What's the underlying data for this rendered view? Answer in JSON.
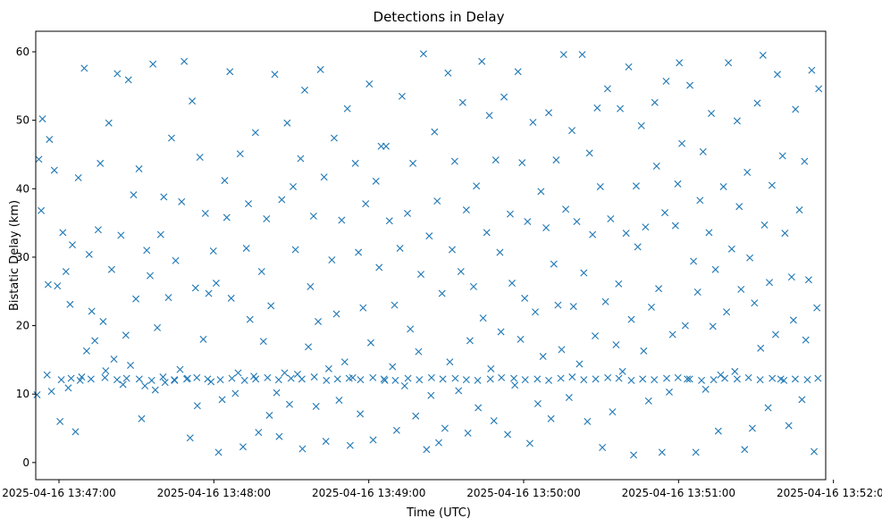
{
  "chart_data": {
    "type": "scatter",
    "title": "Detections in Delay",
    "xlabel": "Time (UTC)",
    "ylabel": "Bistatic Delay (km)",
    "marker": "x",
    "color": "#1f77b4",
    "grid": false,
    "legend": "none",
    "x_range": [
      "2025-04-16 13:46:51",
      "2025-04-16 13:51:57"
    ],
    "ylim": [
      -2.5,
      63
    ],
    "x_ticks": [
      "2025-04-16 13:47:00",
      "2025-04-16 13:48:00",
      "2025-04-16 13:49:00",
      "2025-04-16 13:50:00",
      "2025-04-16 13:51:00",
      "2025-04-16 13:52:00"
    ],
    "y_ticks": [
      0,
      10,
      20,
      30,
      40,
      50,
      60
    ],
    "x_start": "2025-04-16 13:46:51",
    "points_x_seconds_from_start": [
      0.5,
      1.2,
      2.6,
      4.4,
      5.3,
      6.1,
      7.2,
      8.4,
      9.4,
      10.5,
      11.7,
      12.6,
      13.3,
      14.2,
      15.4,
      16.5,
      17.8,
      18.8,
      19.7,
      20.7,
      21.7,
      22.9,
      24.2,
      25.0,
      26.1,
      27.1,
      28.3,
      29.4,
      30.3,
      31.6,
      33.0,
      33.8,
      34.9,
      35.9,
      36.7,
      37.9,
      38.8,
      40.0,
      41.0,
      42.3,
      43.0,
      44.3,
      45.4,
      46.3,
      47.1,
      48.4,
      49.6,
      50.1,
      51.4,
      52.6,
      53.8,
      54.2,
      55.9,
      56.5,
      57.5,
      58.5,
      59.8,
      60.6,
      61.9,
      62.6,
      63.6,
      64.9,
      65.7,
      67.0,
      67.9,
      68.8,
      69.9,
      70.8,
      72.2,
      73.2,
      74.0,
      75.2,
      75.7,
      77.3,
      78.4,
      79.2,
      80.3,
      81.6,
      82.4,
      83.0,
      84.5,
      85.1,
      86.3,
      87.5,
      88.2,
      89.4,
      90.5,
      91.1,
      92.6,
      93.3,
      94.3,
      95.3,
      96.4,
      97.4,
      98.3,
      99.7,
      100.6,
      101.4,
      102.6,
      103.3,
      104.2,
      105.6,
      106.4,
      107.6,
      108.6,
      109.4,
      110.3,
      111.7,
      112.4,
      113.5,
      114.7,
      115.6,
      116.5,
      117.5,
      118.5,
      119.7,
      120.7,
      121.8,
      122.8,
      123.8,
      125.0,
      125.7,
      126.8,
      127.8,
      129.2,
      129.8,
      130.7,
      131.8,
      133.0,
      133.8,
      135.2,
      135.7,
      137.0,
      138.2,
      139.0,
      139.8,
      141.1,
      141.9,
      142.9,
      144.0,
      145.1,
      146.1,
      147.2,
      148.3,
      149.2,
      150.2,
      151.4,
      152.4,
      153.1,
      154.5,
      155.5,
      156.1,
      157.4,
      158.5,
      159.7,
      160.4,
      161.3,
      162.3,
      163.8,
      164.7,
      165.4,
      166.8,
      167.4,
      168.2,
      169.6,
      170.7,
      171.4,
      172.8,
      173.3,
      174.7,
      175.7,
      176.3,
      177.5,
      178.2,
      179.8,
      180.2,
      181.4,
      182.8,
      183.8,
      184.5,
      185.6,
      186.8,
      187.8,
      188.4,
      189.4,
      190.5,
      191.4,
      192.6,
      193.5,
      194.5,
      195.7,
      196.5,
      197.7,
      198.7,
      199.6,
      200.7,
      201.6,
      202.3,
      203.7,
      204.5,
      205.3,
      206.6,
      207.7,
      208.3,
      209.6,
      210.6,
      211.7,
      212.3,
      213.7,
      214.5,
      215.7,
      216.7,
      217.5,
      218.7,
      219.5,
      220.7,
      221.5,
      222.7,
      223.4,
      224.8,
      225.8,
      226.4,
      227.3,
      228.7,
      229.7,
      230.7,
      231.6,
      232.6,
      233.2,
      234.6,
      235.5,
      236.2,
      237.4,
      238.5,
      239.8,
      240.5,
      241.3,
      242.6,
      243.7,
      244.2,
      245.4,
      246.7,
      247.8,
      248.7,
      249.3,
      250.3,
      251.6,
      252.4,
      253.4,
      254.8,
      255.7,
      256.4,
      257.3,
      258.5,
      259.5,
      260.8,
      261.7,
      262.3,
      263.3,
      264.4,
      265.3,
      266.4,
      267.6,
      268.3,
      269.6,
      270.8,
      271.7,
      272.5,
      273.2,
      274.6,
      275.6,
      276.6,
      277.6,
      278.4,
      279.5,
      280.8,
      281.7,
      282.3,
      283.7,
      284.2,
      285.2,
      286.6,
      287.3,
      288.6,
      289.3,
      290.2,
      291.7,
      292.8,
      293.5,
      294.3,
      295.8,
      296.8,
      297.8,
      298.3,
      299.4,
      300.6,
      301.5,
      302.6,
      303.3,
      2.1,
      4.8,
      9.9,
      13.7,
      17.2,
      21.4,
      26.8,
      31.5,
      35.2,
      40.1,
      44.9,
      49.3,
      53.7,
      58.8,
      62.4,
      66.6,
      71.5,
      76.0,
      80.9,
      85.2,
      89.8,
      94.1,
      98.9,
      103.1,
      107.9,
      112.6,
      116.9,
      121.4,
      125.8,
      130.6,
      134.9,
      139.3,
      144.2,
      148.6,
      153.3,
      157.7,
      162.5,
      166.8,
      171.2,
      176.1,
      180.4,
      185.2,
      189.6,
      194.3,
      198.7,
      203.4,
      207.8,
      212.3,
      216.9,
      221.6,
      225.9,
      230.7,
      235.1,
      239.6,
      244.4,
      248.8,
      253.3,
      257.9,
      262.6,
      266.9,
      271.7,
      276.1,
      280.6,
      285.3,
      289.8,
      294.2,
      298.9,
      303.0
    ],
    "points_y": [
      9.9,
      44.3,
      50.2,
      12.8,
      47.2,
      10.4,
      42.7,
      25.8,
      6.0,
      33.6,
      27.9,
      10.9,
      23.1,
      31.8,
      4.5,
      41.6,
      12.5,
      57.6,
      16.3,
      30.4,
      22.1,
      17.8,
      34.0,
      43.7,
      20.6,
      13.4,
      49.6,
      28.2,
      15.1,
      56.8,
      33.2,
      11.4,
      18.6,
      55.9,
      14.2,
      39.1,
      23.9,
      42.9,
      6.4,
      11.2,
      31.0,
      27.3,
      58.2,
      10.6,
      19.7,
      33.3,
      38.8,
      11.7,
      24.1,
      47.4,
      12.0,
      29.5,
      13.6,
      38.1,
      58.6,
      12.2,
      3.6,
      52.8,
      25.5,
      8.3,
      44.6,
      18.0,
      36.4,
      24.7,
      11.8,
      30.9,
      26.2,
      1.5,
      9.2,
      41.2,
      35.8,
      57.1,
      24.0,
      10.1,
      13.1,
      45.1,
      2.3,
      31.3,
      37.8,
      20.9,
      12.6,
      48.2,
      4.4,
      27.9,
      17.7,
      35.6,
      6.9,
      22.9,
      56.7,
      10.2,
      3.8,
      38.4,
      13.1,
      49.6,
      8.5,
      40.3,
      31.1,
      12.9,
      44.4,
      2.0,
      54.4,
      16.9,
      25.7,
      36.0,
      8.2,
      20.6,
      57.4,
      41.7,
      3.1,
      13.7,
      29.6,
      47.4,
      21.7,
      9.1,
      35.4,
      14.7,
      51.7,
      2.5,
      12.4,
      43.7,
      30.7,
      7.1,
      22.6,
      37.8,
      55.3,
      17.5,
      3.3,
      41.1,
      28.5,
      46.2,
      12.0,
      46.2,
      35.3,
      14.0,
      23.0,
      4.7,
      31.3,
      53.5,
      11.2,
      36.4,
      19.5,
      43.7,
      6.8,
      16.2,
      27.5,
      59.7,
      1.9,
      33.1,
      9.8,
      48.3,
      38.2,
      2.9,
      24.7,
      5.0,
      56.9,
      14.7,
      31.1,
      44.0,
      10.5,
      27.9,
      52.6,
      36.9,
      4.3,
      17.8,
      25.7,
      40.4,
      8.0,
      58.6,
      21.1,
      33.6,
      50.7,
      13.7,
      6.1,
      44.2,
      30.7,
      19.1,
      53.4,
      4.1,
      36.3,
      26.2,
      11.3,
      57.1,
      18.0,
      43.8,
      24.0,
      35.2,
      2.8,
      49.7,
      22.0,
      8.6,
      39.6,
      15.5,
      34.3,
      51.1,
      6.4,
      29.0,
      44.2,
      23.0,
      16.5,
      59.6,
      37.0,
      9.5,
      48.5,
      22.8,
      35.2,
      14.4,
      59.6,
      27.7,
      6.0,
      45.2,
      33.3,
      18.5,
      51.8,
      40.3,
      2.2,
      23.5,
      54.6,
      35.6,
      7.4,
      17.2,
      26.1,
      51.7,
      13.3,
      33.5,
      57.8,
      20.9,
      1.1,
      40.4,
      31.5,
      49.2,
      16.3,
      34.4,
      9.0,
      22.7,
      52.6,
      43.3,
      25.4,
      1.5,
      36.5,
      55.7,
      10.3,
      18.7,
      34.6,
      40.7,
      58.4,
      46.6,
      20.0,
      12.2,
      55.1,
      29.4,
      1.5,
      24.9,
      38.3,
      45.4,
      10.7,
      33.6,
      51.0,
      19.9,
      28.2,
      4.6,
      12.8,
      40.3,
      22.0,
      58.4,
      31.2,
      13.3,
      49.9,
      37.4,
      25.3,
      1.9,
      42.4,
      29.9,
      5.0,
      23.3,
      52.5,
      16.7,
      59.5,
      34.7,
      8.0,
      26.3,
      40.5,
      18.7,
      56.7,
      12.2,
      44.8,
      33.5,
      5.4,
      27.1,
      20.8,
      51.6,
      36.9,
      9.2,
      44.0,
      17.9,
      26.7,
      57.3,
      1.6,
      22.6,
      54.6,
      36.8,
      26.0,
      12.1,
      12.3,
      12.0,
      12.2,
      12.4,
      12.1,
      12.3,
      12.2,
      12.0,
      12.5,
      12.1,
      12.3,
      12.4,
      12.2,
      12.1,
      12.3,
      12.0,
      12.2,
      12.4,
      12.1,
      12.3,
      12.2,
      12.5,
      12.0,
      12.2,
      12.3,
      12.1,
      12.4,
      12.2,
      12.0,
      12.3,
      12.1,
      12.4,
      12.2,
      12.3,
      12.1,
      12.0,
      12.2,
      12.4,
      12.3,
      12.1,
      12.2,
      12.0,
      12.3,
      12.5,
      12.1,
      12.2,
      12.4,
      12.3,
      12.0,
      12.2,
      12.1,
      12.3,
      12.4,
      12.2,
      12.0,
      12.1,
      12.3,
      12.2,
      12.4,
      12.1,
      12.3,
      12.0,
      12.2,
      12.1,
      12.3,
      12.4,
      12.2
    ]
  }
}
